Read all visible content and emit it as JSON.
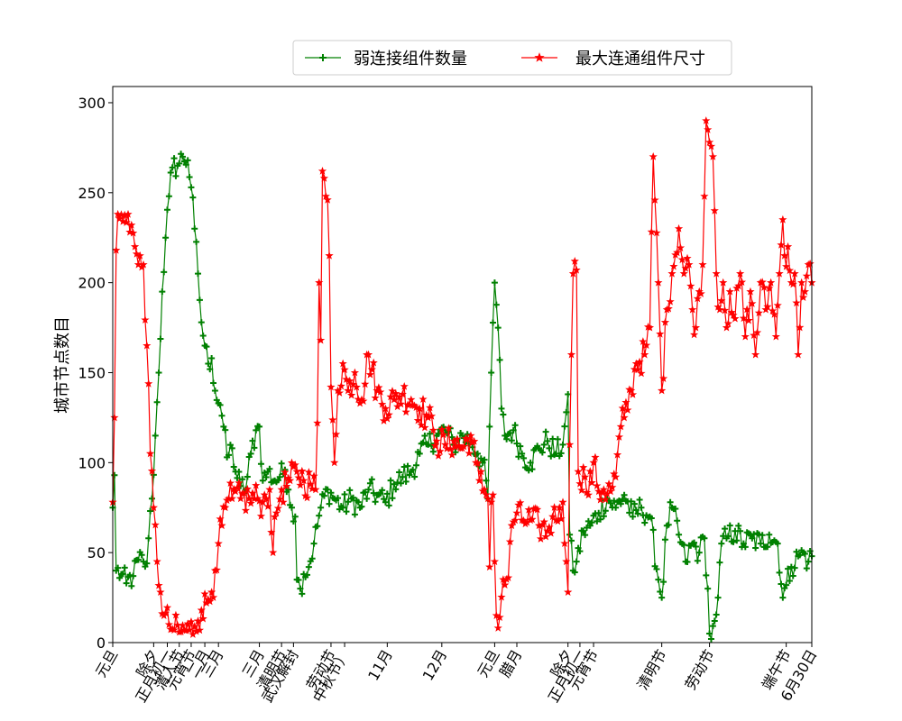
{
  "chart_data": {
    "type": "line",
    "ylabel": "城市节点数目",
    "ylim": [
      0,
      309
    ],
    "xlim": [
      0,
      410
    ],
    "y_ticks": [
      0,
      50,
      100,
      150,
      200,
      250,
      300
    ],
    "x_ticks": [
      {
        "x": 0,
        "label": "元旦"
      },
      {
        "x": 24,
        "label": "除夕"
      },
      {
        "x": 32,
        "label": "正月初一"
      },
      {
        "x": 39,
        "label": "清人节"
      },
      {
        "x": 46,
        "label": "元宵节"
      },
      {
        "x": 54,
        "label": "二月"
      },
      {
        "x": 62,
        "label": "三月"
      },
      {
        "x": 86,
        "label": "三月"
      },
      {
        "x": 99,
        "label": "清明节"
      },
      {
        "x": 106,
        "label": "武汉解封"
      },
      {
        "x": 128,
        "label": "劳动节"
      },
      {
        "x": 136,
        "label": "中秋节）"
      },
      {
        "x": 161,
        "label": "11月"
      },
      {
        "x": 193,
        "label": "12月"
      },
      {
        "x": 224,
        "label": "元旦"
      },
      {
        "x": 237,
        "label": "腊月"
      },
      {
        "x": 267,
        "label": "除夕"
      },
      {
        "x": 274,
        "label": "正月初一"
      },
      {
        "x": 282,
        "label": "元宵节"
      },
      {
        "x": 322,
        "label": "清明节"
      },
      {
        "x": 350,
        "label": "劳动节"
      },
      {
        "x": 395,
        "label": "端午节"
      },
      {
        "x": 410,
        "label": "6月30日"
      }
    ],
    "grid": false,
    "legend_position": "top",
    "series": [
      {
        "name": "弱连接组件数量",
        "color": "#008000",
        "marker": "plus",
        "knots": [
          [
            0,
            75
          ],
          [
            1,
            93
          ],
          [
            2,
            40
          ],
          [
            5,
            38
          ],
          [
            8,
            33
          ],
          [
            12,
            37
          ],
          [
            15,
            46
          ],
          [
            18,
            45
          ],
          [
            20,
            44
          ],
          [
            21,
            58
          ],
          [
            23,
            80
          ],
          [
            25,
            115
          ],
          [
            27,
            150
          ],
          [
            29,
            195
          ],
          [
            31,
            225
          ],
          [
            33,
            248
          ],
          [
            35,
            264
          ],
          [
            38,
            265
          ],
          [
            41,
            270
          ],
          [
            44,
            268
          ],
          [
            46,
            253
          ],
          [
            48,
            230
          ],
          [
            50,
            205
          ],
          [
            52,
            178
          ],
          [
            54,
            165
          ],
          [
            56,
            155
          ],
          [
            58,
            158
          ],
          [
            60,
            140
          ],
          [
            63,
            132
          ],
          [
            65,
            120
          ],
          [
            67,
            103
          ],
          [
            70,
            108
          ],
          [
            72,
            95
          ],
          [
            75,
            87
          ],
          [
            78,
            85
          ],
          [
            81,
            105
          ],
          [
            84,
            118
          ],
          [
            86,
            120
          ],
          [
            88,
            90
          ],
          [
            91,
            95
          ],
          [
            95,
            90
          ],
          [
            98,
            92
          ],
          [
            101,
            96
          ],
          [
            103,
            85
          ],
          [
            105,
            75
          ],
          [
            107,
            70
          ],
          [
            108,
            35
          ],
          [
            110,
            30
          ],
          [
            112,
            38
          ],
          [
            115,
            42
          ],
          [
            118,
            55
          ],
          [
            122,
            75
          ],
          [
            126,
            85
          ],
          [
            130,
            80
          ],
          [
            135,
            75
          ],
          [
            140,
            80
          ],
          [
            145,
            75
          ],
          [
            150,
            85
          ],
          [
            155,
            82
          ],
          [
            160,
            78
          ],
          [
            165,
            88
          ],
          [
            170,
            92
          ],
          [
            175,
            95
          ],
          [
            180,
            105
          ],
          [
            185,
            110
          ],
          [
            190,
            115
          ],
          [
            195,
            118
          ],
          [
            200,
            110
          ],
          [
            205,
            115
          ],
          [
            210,
            112
          ],
          [
            214,
            105
          ],
          [
            217,
            100
          ],
          [
            219,
            90
          ],
          [
            220,
            80
          ],
          [
            221,
            120
          ],
          [
            222,
            150
          ],
          [
            224,
            200
          ],
          [
            226,
            175
          ],
          [
            228,
            130
          ],
          [
            230,
            115
          ],
          [
            235,
            118
          ],
          [
            240,
            105
          ],
          [
            245,
            100
          ],
          [
            250,
            108
          ],
          [
            255,
            112
          ],
          [
            260,
            105
          ],
          [
            264,
            110
          ],
          [
            266,
            128
          ],
          [
            267,
            138
          ],
          [
            268,
            60
          ],
          [
            270,
            40
          ],
          [
            272,
            45
          ],
          [
            276,
            62
          ],
          [
            280,
            65
          ],
          [
            285,
            72
          ],
          [
            290,
            80
          ],
          [
            295,
            75
          ],
          [
            300,
            82
          ],
          [
            305,
            70
          ],
          [
            310,
            75
          ],
          [
            315,
            70
          ],
          [
            320,
            35
          ],
          [
            322,
            25
          ],
          [
            325,
            65
          ],
          [
            328,
            75
          ],
          [
            332,
            60
          ],
          [
            336,
            45
          ],
          [
            340,
            55
          ],
          [
            344,
            50
          ],
          [
            347,
            58
          ],
          [
            349,
            30
          ],
          [
            350,
            5
          ],
          [
            351,
            2
          ],
          [
            353,
            12
          ],
          [
            355,
            25
          ],
          [
            357,
            55
          ],
          [
            360,
            58
          ],
          [
            365,
            62
          ],
          [
            370,
            55
          ],
          [
            375,
            58
          ],
          [
            380,
            55
          ],
          [
            385,
            60
          ],
          [
            390,
            55
          ],
          [
            393,
            25
          ],
          [
            395,
            32
          ],
          [
            398,
            42
          ],
          [
            402,
            48
          ],
          [
            405,
            50
          ],
          [
            408,
            45
          ],
          [
            410,
            48
          ]
        ]
      },
      {
        "name": "最大连通组件尺寸",
        "color": "#ff0000",
        "marker": "star",
        "knots": [
          [
            0,
            78
          ],
          [
            1,
            125
          ],
          [
            2,
            218
          ],
          [
            3,
            238
          ],
          [
            6,
            234
          ],
          [
            9,
            238
          ],
          [
            11,
            232
          ],
          [
            13,
            220
          ],
          [
            15,
            210
          ],
          [
            18,
            210
          ],
          [
            20,
            165
          ],
          [
            22,
            105
          ],
          [
            24,
            75
          ],
          [
            26,
            45
          ],
          [
            28,
            28
          ],
          [
            30,
            15
          ],
          [
            33,
            10
          ],
          [
            36,
            7
          ],
          [
            40,
            6
          ],
          [
            45,
            7
          ],
          [
            48,
            9
          ],
          [
            50,
            12
          ],
          [
            52,
            18
          ],
          [
            55,
            22
          ],
          [
            58,
            28
          ],
          [
            60,
            40
          ],
          [
            62,
            55
          ],
          [
            64,
            65
          ],
          [
            66,
            75
          ],
          [
            68,
            80
          ],
          [
            70,
            80
          ],
          [
            75,
            80
          ],
          [
            80,
            80
          ],
          [
            85,
            80
          ],
          [
            88,
            78
          ],
          [
            90,
            80
          ],
          [
            92,
            85
          ],
          [
            94,
            50
          ],
          [
            96,
            72
          ],
          [
            99,
            85
          ],
          [
            104,
            90
          ],
          [
            108,
            95
          ],
          [
            112,
            90
          ],
          [
            116,
            88
          ],
          [
            119,
            85
          ],
          [
            120,
            122
          ],
          [
            121,
            200
          ],
          [
            122,
            168
          ],
          [
            123,
            262
          ],
          [
            124,
            258
          ],
          [
            125,
            248
          ],
          [
            126,
            246
          ],
          [
            127,
            215
          ],
          [
            128,
            142
          ],
          [
            130,
            100
          ],
          [
            132,
            140
          ],
          [
            135,
            155
          ],
          [
            138,
            140
          ],
          [
            142,
            150
          ],
          [
            146,
            135
          ],
          [
            150,
            160
          ],
          [
            155,
            140
          ],
          [
            160,
            130
          ],
          [
            165,
            135
          ],
          [
            170,
            138
          ],
          [
            175,
            135
          ],
          [
            180,
            130
          ],
          [
            185,
            125
          ],
          [
            188,
            118
          ],
          [
            190,
            112
          ],
          [
            195,
            110
          ],
          [
            200,
            112
          ],
          [
            205,
            108
          ],
          [
            210,
            115
          ],
          [
            213,
            100
          ],
          [
            215,
            90
          ],
          [
            218,
            85
          ],
          [
            220,
            80
          ],
          [
            221,
            42
          ],
          [
            222,
            78
          ],
          [
            223,
            82
          ],
          [
            224,
            45
          ],
          [
            225,
            15
          ],
          [
            227,
            14
          ],
          [
            229,
            35
          ],
          [
            232,
            36
          ],
          [
            234,
            65
          ],
          [
            237,
            72
          ],
          [
            240,
            68
          ],
          [
            245,
            68
          ],
          [
            250,
            65
          ],
          [
            255,
            62
          ],
          [
            258,
            70
          ],
          [
            260,
            68
          ],
          [
            262,
            75
          ],
          [
            264,
            78
          ],
          [
            266,
            45
          ],
          [
            267,
            28
          ],
          [
            268,
            110
          ],
          [
            269,
            160
          ],
          [
            270,
            205
          ],
          [
            272,
            207
          ],
          [
            273,
            95
          ],
          [
            277,
            92
          ],
          [
            279,
            82
          ],
          [
            282,
            100
          ],
          [
            285,
            84
          ],
          [
            288,
            85
          ],
          [
            292,
            84
          ],
          [
            295,
            92
          ],
          [
            298,
            120
          ],
          [
            300,
            125
          ],
          [
            304,
            140
          ],
          [
            307,
            155
          ],
          [
            312,
            160
          ],
          [
            315,
            175
          ],
          [
            317,
            270
          ],
          [
            320,
            200
          ],
          [
            322,
            140
          ],
          [
            325,
            185
          ],
          [
            328,
            205
          ],
          [
            332,
            230
          ],
          [
            335,
            205
          ],
          [
            338,
            210
          ],
          [
            340,
            185
          ],
          [
            342,
            175
          ],
          [
            344,
            195
          ],
          [
            346,
            210
          ],
          [
            347,
            248
          ],
          [
            348,
            290
          ],
          [
            349,
            285
          ],
          [
            350,
            278
          ],
          [
            352,
            270
          ],
          [
            353,
            240
          ],
          [
            354,
            205
          ],
          [
            356,
            185
          ],
          [
            358,
            200
          ],
          [
            360,
            175
          ],
          [
            362,
            195
          ],
          [
            365,
            180
          ],
          [
            368,
            205
          ],
          [
            371,
            170
          ],
          [
            374,
            195
          ],
          [
            377,
            160
          ],
          [
            380,
            200
          ],
          [
            383,
            185
          ],
          [
            386,
            200
          ],
          [
            389,
            170
          ],
          [
            391,
            205
          ],
          [
            393,
            235
          ],
          [
            394,
            215
          ],
          [
            396,
            220
          ],
          [
            398,
            200
          ],
          [
            400,
            205
          ],
          [
            402,
            160
          ],
          [
            404,
            200
          ],
          [
            406,
            195
          ],
          [
            408,
            210
          ],
          [
            410,
            200
          ]
        ]
      }
    ]
  }
}
